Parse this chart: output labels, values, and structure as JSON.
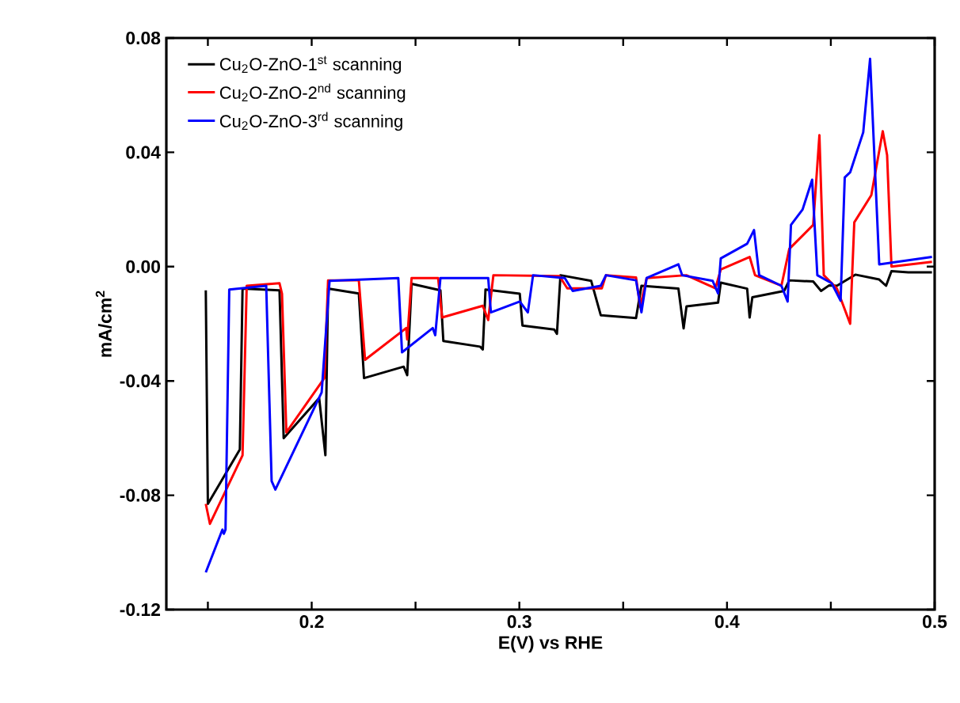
{
  "chart_data": {
    "type": "line",
    "xlabel": "E(V) vs RHE",
    "ylabel": "mA/cm$^{2}$",
    "xlim": [
      0.13,
      0.5
    ],
    "ylim": [
      -0.12,
      0.08
    ],
    "xticks": [
      {
        "value": 0.15,
        "label": null
      },
      0.2,
      {
        "value": 0.25,
        "label": null
      },
      0.3,
      {
        "value": 0.35,
        "label": null
      },
      0.4,
      {
        "value": 0.45,
        "label": null
      },
      0.5
    ],
    "yticks": [
      -0.12,
      -0.08,
      -0.04,
      {
        "value": 0,
        "label": "0.00"
      },
      0.04,
      0.08
    ],
    "legend": "top left",
    "grid": false,
    "marker": "none",
    "line_style": "solid",
    "series": [
      {
        "name": "Cu$_{2}$O-ZnO-1$^{st}$ scanning",
        "color": "#000000",
        "x": [
          0.149,
          0.15,
          0.1654,
          0.1667,
          0.1845,
          0.1865,
          0.2036,
          0.2066,
          0.2079,
          0.2227,
          0.2252,
          0.2443,
          0.246,
          0.2481,
          0.262,
          0.2634,
          0.2811,
          0.2824,
          0.2837,
          0.3002,
          0.3015,
          0.3168,
          0.3181,
          0.3198,
          0.3346,
          0.3392,
          0.3562,
          0.3588,
          0.3766,
          0.3791,
          0.3805,
          0.3957,
          0.397,
          0.4097,
          0.4109,
          0.4122,
          0.4275,
          0.43,
          0.4415,
          0.4453,
          0.4491,
          0.4529,
          0.4618,
          0.4733,
          0.4766,
          0.4792,
          0.4873,
          0.4987
        ],
        "values": [
          -0.0083,
          -0.083,
          -0.064,
          -0.0077,
          -0.0083,
          -0.06,
          -0.046,
          -0.066,
          -0.0077,
          -0.0094,
          -0.039,
          -0.035,
          -0.038,
          -0.006,
          -0.0083,
          -0.026,
          -0.028,
          -0.029,
          -0.008,
          -0.0095,
          -0.0206,
          -0.022,
          -0.0235,
          -0.003,
          -0.005,
          -0.017,
          -0.018,
          -0.0067,
          -0.0077,
          -0.0216,
          -0.0139,
          -0.0126,
          -0.0056,
          -0.0077,
          -0.0178,
          -0.0107,
          -0.0085,
          -0.0048,
          -0.0052,
          -0.0085,
          -0.0066,
          -0.0067,
          -0.0028,
          -0.0045,
          -0.0067,
          -0.0016,
          -0.002,
          -0.002
        ]
      },
      {
        "name": "Cu$_{2}$O-ZnO-2$^{nd}$ scanning",
        "color": "#ff0000",
        "x": [
          0.149,
          0.151,
          0.1667,
          0.1687,
          0.1845,
          0.1857,
          0.1878,
          0.2061,
          0.2079,
          0.2227,
          0.2257,
          0.2455,
          0.246,
          0.2481,
          0.2609,
          0.2628,
          0.2824,
          0.285,
          0.2875,
          0.3193,
          0.3231,
          0.3397,
          0.3417,
          0.3562,
          0.3582,
          0.3613,
          0.3804,
          0.3944,
          0.397,
          0.4109,
          0.4135,
          0.4262,
          0.43,
          0.4415,
          0.4445,
          0.4466,
          0.4529,
          0.4593,
          0.4613,
          0.4695,
          0.475,
          0.4771,
          0.4792,
          0.4987
        ],
        "values": [
          -0.083,
          -0.09,
          -0.066,
          -0.0067,
          -0.0058,
          -0.0095,
          -0.058,
          -0.039,
          -0.0048,
          -0.0048,
          -0.0326,
          -0.0215,
          -0.0255,
          -0.004,
          -0.004,
          -0.0178,
          -0.0137,
          -0.0187,
          -0.003,
          -0.0033,
          -0.0076,
          -0.0076,
          -0.003,
          -0.0038,
          -0.0141,
          -0.004,
          -0.003,
          -0.0076,
          -0.001,
          0.0034,
          -0.003,
          -0.0067,
          0.0062,
          0.0146,
          0.046,
          -0.003,
          -0.0076,
          -0.02,
          0.0155,
          0.025,
          0.0474,
          0.039,
          0.0,
          0.0017
        ]
      },
      {
        "name": "Cu$_{2}$O-ZnO-3$^{rd}$ scanning",
        "color": "#0000ff",
        "x": [
          0.149,
          0.157,
          0.1577,
          0.1585,
          0.1603,
          0.1781,
          0.1807,
          0.1825,
          0.2048,
          0.2086,
          0.2417,
          0.2435,
          0.2583,
          0.2595,
          0.262,
          0.285,
          0.2863,
          0.3002,
          0.3041,
          0.3066,
          0.3219,
          0.3257,
          0.3392,
          0.3417,
          0.3562,
          0.3588,
          0.3613,
          0.3766,
          0.3784,
          0.3931,
          0.3957,
          0.397,
          0.4097,
          0.413,
          0.4155,
          0.4262,
          0.4292,
          0.4308,
          0.4364,
          0.441,
          0.4435,
          0.4504,
          0.4547,
          0.4567,
          0.4593,
          0.4656,
          0.4689,
          0.4733,
          0.4987
        ],
        "values": [
          -0.107,
          -0.092,
          -0.0935,
          -0.092,
          -0.008,
          -0.0067,
          -0.075,
          -0.078,
          -0.044,
          -0.005,
          -0.004,
          -0.03,
          -0.0215,
          -0.024,
          -0.004,
          -0.004,
          -0.016,
          -0.0122,
          -0.016,
          -0.003,
          -0.004,
          -0.0085,
          -0.0067,
          -0.003,
          -0.0048,
          -0.016,
          -0.004,
          0.0008,
          -0.003,
          -0.005,
          -0.0094,
          0.0029,
          0.008,
          0.0128,
          -0.003,
          -0.0067,
          -0.0122,
          0.0146,
          0.02,
          0.0304,
          -0.003,
          -0.0058,
          -0.0119,
          0.0312,
          0.033,
          0.047,
          0.0727,
          0.0008,
          0.0034
        ]
      }
    ]
  }
}
